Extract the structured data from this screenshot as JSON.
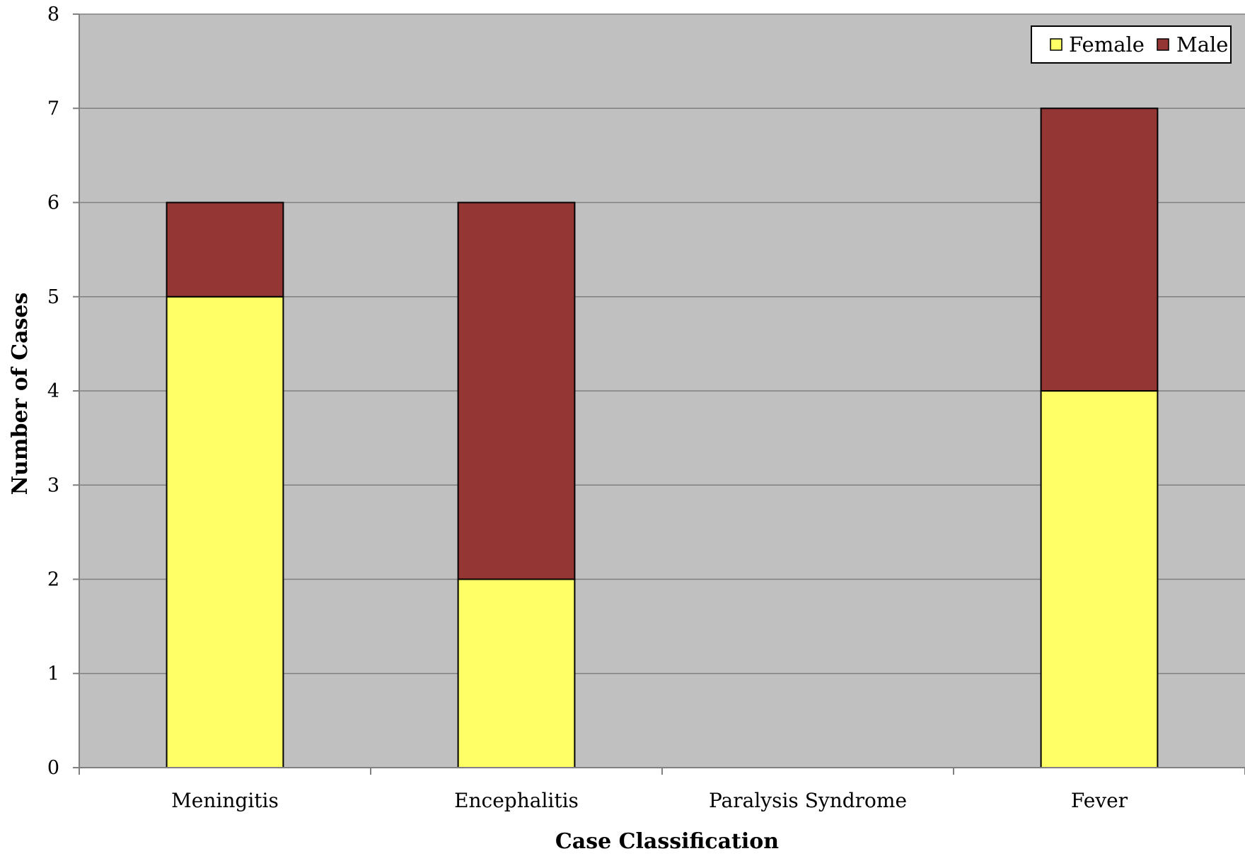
{
  "chart_data": {
    "type": "bar",
    "stacked": true,
    "categories": [
      "Meningitis",
      "Encephalitis",
      "Paralysis Syndrome",
      "Fever"
    ],
    "series": [
      {
        "name": "Female",
        "values": [
          5,
          2,
          0,
          4
        ],
        "color": "#FFFF66"
      },
      {
        "name": "Male",
        "values": [
          1,
          4,
          0,
          3
        ],
        "color": "#943634"
      }
    ],
    "xlabel": "Case Classification",
    "ylabel": "Number of Cases",
    "ylim": [
      0,
      8
    ],
    "yticks": [
      0,
      1,
      2,
      3,
      4,
      5,
      6,
      7,
      8
    ],
    "grid": true,
    "legend": "top-right",
    "plot_background": "#C0C0C0"
  }
}
